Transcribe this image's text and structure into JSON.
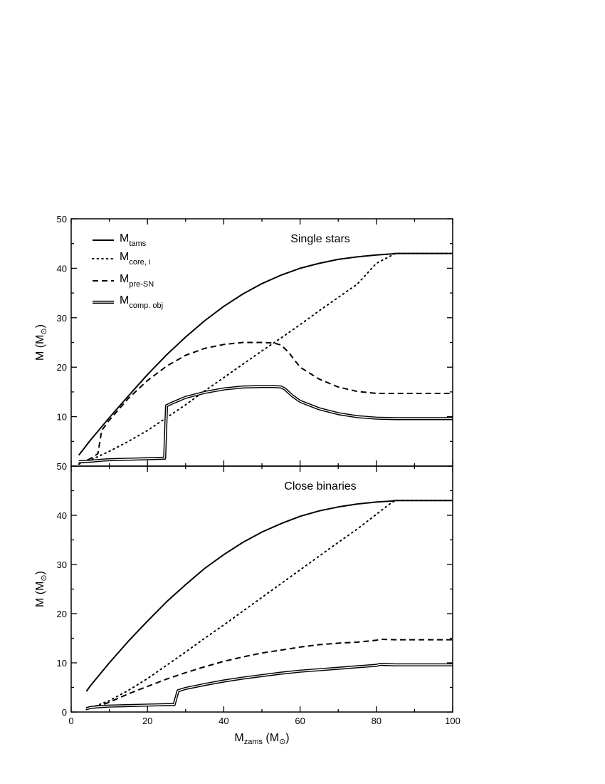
{
  "chart_data": {
    "type": "line",
    "xlabel": {
      "main": "M",
      "sub": "zams",
      "unit_open": " (M",
      "unit_sub": "⊙",
      "unit_close": ")"
    },
    "xlim": [
      0,
      100
    ],
    "xticks": [
      0,
      20,
      40,
      60,
      80,
      100
    ],
    "legend": {
      "placement": "top-left",
      "entries": [
        {
          "key": "tams",
          "main": "M",
          "sub": "tams",
          "style": "solid"
        },
        {
          "key": "core",
          "main": "M",
          "sub": "core, i",
          "style": "dotted"
        },
        {
          "key": "preSN",
          "main": "M",
          "sub": "pre-SN",
          "style": "dashed"
        },
        {
          "key": "comp",
          "main": "M",
          "sub": "comp. obj",
          "style": "double"
        }
      ]
    },
    "panels": [
      {
        "title": "Single stars",
        "ylabel": {
          "main": "M (M",
          "sub": "⊙",
          "close": ")"
        },
        "ylim": [
          0,
          50
        ],
        "yticks": [
          10,
          20,
          30,
          40,
          50
        ],
        "series": [
          {
            "key": "tams",
            "x": [
              2,
              5,
              10,
              15,
              20,
              25,
              30,
              35,
              40,
              45,
              50,
              55,
              60,
              65,
              70,
              75,
              80,
              84,
              85,
              90,
              95,
              100
            ],
            "y": [
              2.2,
              5.2,
              9.8,
              14.2,
              18.5,
              22.5,
              26.1,
              29.4,
              32.3,
              34.8,
              36.9,
              38.6,
              40.0,
              41.0,
              41.8,
              42.3,
              42.7,
              42.9,
              43,
              43,
              43,
              43
            ]
          },
          {
            "key": "core",
            "x": [
              2,
              5,
              10,
              15,
              20,
              25,
              30,
              35,
              40,
              45,
              50,
              55,
              60,
              65,
              70,
              75,
              80,
              85,
              90,
              95,
              100
            ],
            "y": [
              0.4,
              1.2,
              3.0,
              5.0,
              7.2,
              9.8,
              12.4,
              15.2,
              17.9,
              20.6,
              23.3,
              25.9,
              28.6,
              31.4,
              34.1,
              36.8,
              41.0,
              43,
              43,
              43,
              43
            ]
          },
          {
            "key": "preSN",
            "x": [
              2,
              5,
              7,
              8,
              10,
              15,
              20,
              25,
              30,
              35,
              40,
              45,
              50,
              53,
              55,
              57,
              60,
              65,
              70,
              75,
              80,
              85,
              90,
              95,
              100
            ],
            "y": [
              0.5,
              1.5,
              2.5,
              7.2,
              9.3,
              13.7,
              17.3,
              20.2,
              22.4,
              23.8,
              24.6,
              25.0,
              25.0,
              24.9,
              24.5,
              23.0,
              20.0,
              17.6,
              16.0,
              15.1,
              14.7,
              14.7,
              14.7,
              14.7,
              14.7
            ]
          },
          {
            "key": "comp",
            "x": [
              2,
              5,
              8,
              10,
              15,
              20,
              24.5,
              25,
              26,
              30,
              35,
              40,
              45,
              50,
              53,
              55,
              56,
              58,
              60,
              65,
              70,
              75,
              80,
              85,
              90,
              95,
              100
            ],
            "y": [
              0.9,
              1.0,
              1.2,
              1.3,
              1.4,
              1.5,
              1.6,
              12.2,
              12.6,
              13.9,
              14.9,
              15.6,
              16.0,
              16.1,
              16.1,
              16.0,
              15.6,
              14.2,
              13.1,
              11.6,
              10.6,
              10.0,
              9.7,
              9.6,
              9.6,
              9.6,
              9.6
            ]
          }
        ]
      },
      {
        "title": "Close binaries",
        "ylabel": {
          "main": "M (M",
          "sub": "⊙",
          "close": ")"
        },
        "ylim": [
          0,
          50
        ],
        "yticks": [
          0,
          10,
          20,
          30,
          40,
          50
        ],
        "series": [
          {
            "key": "tams",
            "x": [
              4,
              5,
              10,
              15,
              20,
              25,
              30,
              35,
              40,
              45,
              50,
              55,
              60,
              65,
              70,
              75,
              80,
              84,
              85,
              90,
              95,
              100
            ],
            "y": [
              4.2,
              5.3,
              10.0,
              14.4,
              18.5,
              22.4,
              25.9,
              29.2,
              32.0,
              34.5,
              36.6,
              38.3,
              39.8,
              40.9,
              41.7,
              42.3,
              42.7,
              42.9,
              43,
              43,
              43,
              43
            ]
          },
          {
            "key": "core",
            "x": [
              4,
              5,
              10,
              15,
              20,
              25,
              30,
              35,
              40,
              45,
              50,
              55,
              60,
              65,
              70,
              75,
              80,
              84,
              85,
              90,
              95,
              100
            ],
            "y": [
              0.5,
              0.8,
              2.3,
              4.4,
              6.8,
              9.5,
              12.2,
              15.0,
              17.7,
              20.5,
              23.3,
              26.1,
              28.9,
              31.7,
              34.5,
              37.2,
              40.2,
              42.6,
              43,
              43,
              43,
              43
            ]
          },
          {
            "key": "preSN",
            "x": [
              4,
              5,
              8,
              10,
              15,
              20,
              25,
              30,
              35,
              40,
              45,
              50,
              55,
              60,
              65,
              70,
              75,
              80,
              81,
              85,
              90,
              95,
              100
            ],
            "y": [
              0.6,
              1.0,
              1.4,
              2.0,
              3.7,
              5.2,
              6.7,
              8.0,
              9.2,
              10.3,
              11.2,
              12.0,
              12.6,
              13.2,
              13.7,
              14.0,
              14.2,
              14.6,
              14.8,
              14.7,
              14.7,
              14.7,
              14.7
            ]
          },
          {
            "key": "comp",
            "x": [
              4,
              5,
              6,
              8,
              10,
              15,
              20,
              25,
              27,
              28,
              30,
              35,
              40,
              45,
              50,
              55,
              60,
              65,
              70,
              75,
              80,
              81,
              85,
              90,
              95,
              100
            ],
            "y": [
              0.7,
              0.9,
              1.0,
              1.1,
              1.2,
              1.3,
              1.4,
              1.5,
              1.5,
              4.3,
              4.8,
              5.6,
              6.3,
              6.9,
              7.4,
              7.9,
              8.3,
              8.6,
              8.9,
              9.2,
              9.5,
              9.7,
              9.6,
              9.6,
              9.6,
              9.6
            ]
          }
        ]
      }
    ]
  }
}
